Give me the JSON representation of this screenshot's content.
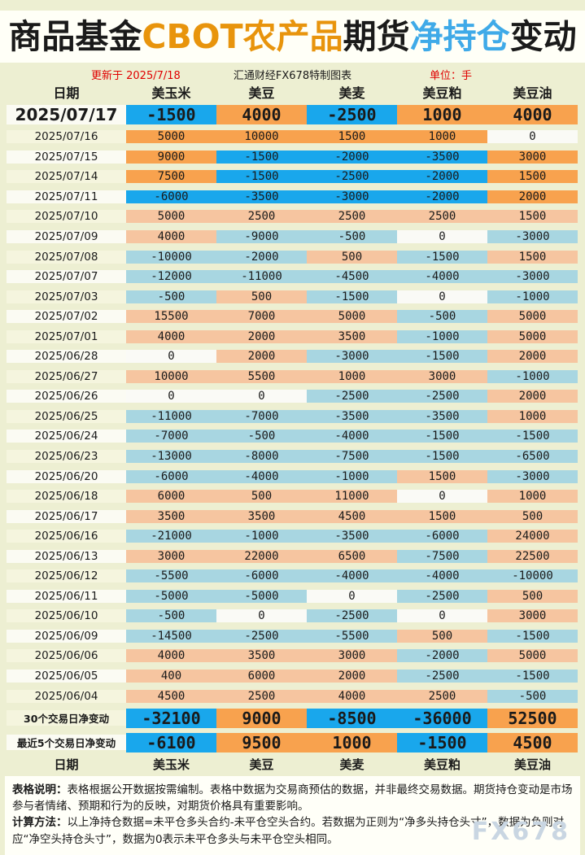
{
  "title": {
    "segments": [
      {
        "text": "商品基金",
        "color": "#1a1a1a"
      },
      {
        "text": "CBOT农产品",
        "color": "#E8940C"
      },
      {
        "text": "期货",
        "color": "#1a1a1a"
      },
      {
        "text": "净持仓",
        "color": "#3FAAE8"
      },
      {
        "text": "变动",
        "color": "#1a1a1a"
      }
    ]
  },
  "meta": {
    "updated": "更新于 2025/7/18",
    "source": "汇通财经FX678特制图表",
    "unit": "单位：手"
  },
  "colors": {
    "pos_strong": "#F8A24E",
    "neg_strong": "#19A7EC",
    "pos_light": "#F6C5A0",
    "neg_light": "#A8D6E1",
    "zero": "#FAFAF6",
    "date_white": "#FBFBF3",
    "date_cream": "#F5F5DE"
  },
  "chart_data": {
    "type": "table",
    "title": "商品基金CBOT农产品期货净持仓变动",
    "columns": [
      "日期",
      "美玉米",
      "美豆",
      "美麦",
      "美豆粕",
      "美豆油"
    ],
    "strong_rows": 5,
    "rows": [
      {
        "date": "2025/07/17",
        "values": [
          -1500,
          4000,
          -2500,
          1000,
          4000
        ]
      },
      {
        "date": "2025/07/16",
        "values": [
          5000,
          10000,
          1500,
          1000,
          0
        ]
      },
      {
        "date": "2025/07/15",
        "values": [
          9000,
          -1500,
          -2000,
          -3500,
          3000
        ]
      },
      {
        "date": "2025/07/14",
        "values": [
          7500,
          -1500,
          -2500,
          -2000,
          1500
        ]
      },
      {
        "date": "2025/07/11",
        "values": [
          -6000,
          -3500,
          -3000,
          -2000,
          2000
        ]
      },
      {
        "date": "2025/07/10",
        "values": [
          5000,
          2500,
          2500,
          2500,
          1500
        ]
      },
      {
        "date": "2025/07/09",
        "values": [
          4000,
          -9000,
          -500,
          0,
          -3000
        ]
      },
      {
        "date": "2025/07/08",
        "values": [
          -10000,
          -2000,
          500,
          -1500,
          1500
        ]
      },
      {
        "date": "2025/07/07",
        "values": [
          -12000,
          -11000,
          -4500,
          -4000,
          -3000
        ]
      },
      {
        "date": "2025/07/03",
        "values": [
          -500,
          500,
          -1500,
          0,
          -1000
        ]
      },
      {
        "date": "2025/07/02",
        "values": [
          15500,
          7000,
          5000,
          -500,
          5000
        ]
      },
      {
        "date": "2025/07/01",
        "values": [
          4000,
          2000,
          3500,
          -1000,
          5000
        ]
      },
      {
        "date": "2025/06/28",
        "values": [
          0,
          2000,
          -3000,
          -1500,
          2000
        ]
      },
      {
        "date": "2025/06/27",
        "values": [
          10000,
          5500,
          1000,
          3000,
          -1000
        ]
      },
      {
        "date": "2025/06/26",
        "values": [
          0,
          0,
          -2500,
          -2500,
          2000
        ]
      },
      {
        "date": "2025/06/25",
        "values": [
          -11000,
          -7000,
          -3500,
          -3500,
          1000
        ]
      },
      {
        "date": "2025/06/24",
        "values": [
          -7000,
          -500,
          -4000,
          -1500,
          -1500
        ]
      },
      {
        "date": "2025/06/23",
        "values": [
          -13000,
          -8000,
          -7500,
          -1500,
          -6500
        ]
      },
      {
        "date": "2025/06/20",
        "values": [
          -6000,
          -4000,
          -1000,
          1500,
          -3000
        ]
      },
      {
        "date": "2025/06/18",
        "values": [
          6000,
          500,
          11000,
          0,
          1000
        ]
      },
      {
        "date": "2025/06/17",
        "values": [
          3500,
          3500,
          4500,
          1500,
          500
        ]
      },
      {
        "date": "2025/06/16",
        "values": [
          -21000,
          -1000,
          -3500,
          -6000,
          24000
        ]
      },
      {
        "date": "2025/06/13",
        "values": [
          3000,
          22000,
          6500,
          -7500,
          22500
        ]
      },
      {
        "date": "2025/06/12",
        "values": [
          -5500,
          -6000,
          -4000,
          -4000,
          -10000
        ]
      },
      {
        "date": "2025/06/11",
        "values": [
          -5000,
          -5000,
          0,
          -2500,
          500
        ]
      },
      {
        "date": "2025/06/10",
        "values": [
          -500,
          0,
          -2500,
          0,
          3000
        ]
      },
      {
        "date": "2025/06/09",
        "values": [
          -14500,
          -2500,
          -5500,
          500,
          -1500
        ]
      },
      {
        "date": "2025/06/06",
        "values": [
          4000,
          3500,
          3000,
          -2000,
          5000
        ]
      },
      {
        "date": "2025/06/05",
        "values": [
          400,
          6000,
          2000,
          -2500,
          -1500
        ]
      },
      {
        "date": "2025/06/04",
        "values": [
          4500,
          2500,
          4000,
          2500,
          -500
        ]
      }
    ],
    "summary": [
      {
        "label": "30个交易日净变动",
        "values": [
          -32100,
          9000,
          -8500,
          -36000,
          52500
        ]
      },
      {
        "label": "最近5个交易日净变动",
        "values": [
          -6100,
          9500,
          1000,
          -1500,
          4500
        ]
      }
    ],
    "footer_columns": [
      "日期",
      "美玉米",
      "美豆",
      "美麦",
      "美豆粕",
      "美豆油"
    ]
  },
  "notes": [
    {
      "label": "表格说明：",
      "text": "表格根据公开数据按需编制。表格中数据为交易商预估的数据，并非最终交易数据。期货持仓变动是市场参与者情绪、预期和行为的反映，对期货价格具有重要影响。"
    },
    {
      "label": "计算方法：",
      "text": "以上净持仓数据=未平仓多头合约-未平仓空头合约。若数据为正则为“净多头持仓头寸”，数据为负则对应“净空头持仓头寸”，数据为0表示未平仓多头与未平仓空头相同。"
    }
  ],
  "watermark": "FX678"
}
